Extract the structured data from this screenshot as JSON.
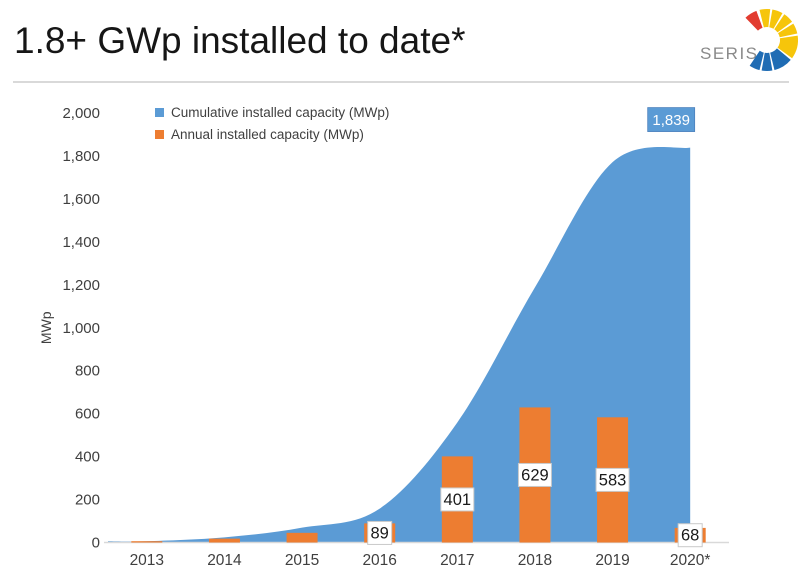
{
  "header": {
    "title": "1.8+ GWp installed to date*",
    "logo_text": "SERIS"
  },
  "legend": {
    "items": [
      {
        "label": "Cumulative installed capacity (MWp)",
        "color": "#5b9bd5"
      },
      {
        "label": "Annual installed capacity (MWp)",
        "color": "#ed7d31"
      }
    ]
  },
  "chart_data": {
    "type": "area",
    "subtype": "combo-area-and-bar",
    "title": "1.8+ GWp installed to date*",
    "categories": [
      "2013",
      "2014",
      "2015",
      "2016",
      "2017",
      "2018",
      "2019",
      "2020*"
    ],
    "series": [
      {
        "name": "Cumulative installed capacity (MWp)",
        "type": "area",
        "color": "#5b9bd5",
        "values": [
          6,
          24,
          69,
          158,
          559,
          1188,
          1771,
          1839
        ],
        "data_labels": [
          null,
          null,
          null,
          null,
          null,
          null,
          null,
          "1,839"
        ]
      },
      {
        "name": "Annual installed capacity (MWp)",
        "type": "bar",
        "color": "#ed7d31",
        "values": [
          6,
          18,
          45,
          89,
          401,
          629,
          583,
          68
        ],
        "data_labels": [
          null,
          null,
          null,
          "89",
          "401",
          "629",
          "583",
          "68"
        ]
      }
    ],
    "xlabel": "",
    "ylabel": "MWp",
    "ylim": [
      0,
      2000
    ],
    "ytick_step": 200,
    "ytick_labels": [
      "0",
      "200",
      "400",
      "600",
      "800",
      "1,000",
      "1,200",
      "1,400",
      "1,600",
      "1,800",
      "2,000"
    ],
    "grid": false,
    "legend_position": "inside-top-left"
  },
  "styles": {
    "axis_line_color": "#d9d9d9",
    "tick_label_color": "#3f3f3f",
    "bar_label_box_fill": "#ffffff",
    "bar_label_box_border": "#c9c9c9",
    "bar_label_text_color": "#1a1a1a",
    "callout_fill": "#5b9bd5",
    "callout_border": "#4a7ebb",
    "callout_text_color": "#ffffff"
  },
  "logo": {
    "text_color": "#8a8a8a",
    "segments": [
      {
        "name": "red-ray",
        "color": "#e23c30",
        "start": -44,
        "end": -20
      },
      {
        "name": "yellow-ray",
        "color": "#f6c50b",
        "start": -14,
        "end": 6
      },
      {
        "name": "yellow-ray",
        "color": "#f6c50b",
        "start": 10,
        "end": 30
      },
      {
        "name": "yellow-ray",
        "color": "#f6c50b",
        "start": 34,
        "end": 54
      },
      {
        "name": "yellow-ray",
        "color": "#f6c50b",
        "start": 58,
        "end": 78
      },
      {
        "name": "yellow-ray",
        "color": "#f6c50b",
        "start": 82,
        "end": 126
      },
      {
        "name": "blue-ray",
        "color": "#1f6cb4",
        "start": 130,
        "end": 166
      },
      {
        "name": "blue-ray",
        "color": "#1f6cb4",
        "start": 170,
        "end": 190
      },
      {
        "name": "blue-ray",
        "color": "#1f6cb4",
        "start": 194,
        "end": 214
      }
    ]
  }
}
